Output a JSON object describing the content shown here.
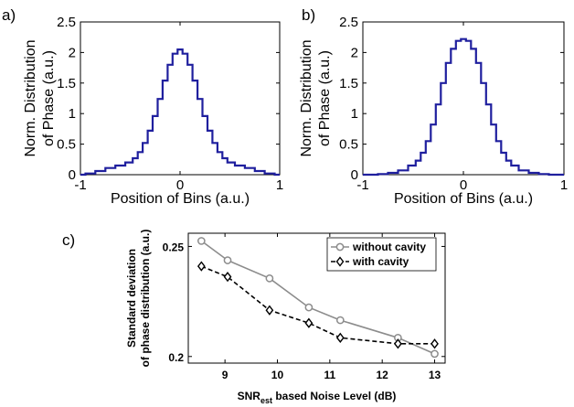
{
  "chart_data": [
    {
      "panel_label": "a)",
      "type": "line",
      "xlabel": "Position of Bins (a.u.)",
      "ylabel_lines": [
        "Norm. Distribution",
        "of Phase (a.u.)"
      ],
      "xlim": [
        -1,
        1
      ],
      "ylim": [
        0,
        2.5
      ],
      "xticks": [
        "-1",
        "0",
        "1"
      ],
      "yticks": [
        "0",
        "0.5",
        "1",
        "1.5",
        "2",
        "2.5"
      ],
      "line_color": "#1f1f9e",
      "series": [
        {
          "style": "step",
          "x": [
            -1,
            -0.9,
            -0.8,
            -0.7,
            -0.6,
            -0.5,
            -0.45,
            -0.4,
            -0.35,
            -0.3,
            -0.25,
            -0.2,
            -0.15,
            -0.1,
            -0.05,
            0,
            0.05,
            0.1,
            0.15,
            0.2,
            0.25,
            0.3,
            0.35,
            0.4,
            0.45,
            0.5,
            0.6,
            0.7,
            0.8,
            0.9,
            1
          ],
          "values": [
            0.0,
            0.02,
            0.06,
            0.11,
            0.15,
            0.2,
            0.27,
            0.37,
            0.52,
            0.72,
            0.96,
            1.24,
            1.54,
            1.8,
            1.98,
            2.05,
            1.98,
            1.8,
            1.54,
            1.24,
            0.96,
            0.72,
            0.52,
            0.37,
            0.27,
            0.2,
            0.15,
            0.11,
            0.06,
            0.02,
            0.0
          ]
        }
      ]
    },
    {
      "panel_label": "b)",
      "type": "line",
      "xlabel": "Position of Bins (a.u.)",
      "ylabel_lines": [
        "Norm. Distribution",
        "of Phase (a.u.)"
      ],
      "xlim": [
        -1,
        1
      ],
      "ylim": [
        0,
        2.5
      ],
      "xticks": [
        "-1",
        "0",
        "1"
      ],
      "yticks": [
        "0",
        "0.5",
        "1",
        "1.5",
        "2",
        "2.5"
      ],
      "line_color": "#1f1f9e",
      "series": [
        {
          "style": "step",
          "x": [
            -1,
            -0.9,
            -0.8,
            -0.7,
            -0.6,
            -0.5,
            -0.45,
            -0.4,
            -0.35,
            -0.3,
            -0.25,
            -0.2,
            -0.15,
            -0.1,
            -0.05,
            0,
            0.05,
            0.1,
            0.15,
            0.2,
            0.25,
            0.3,
            0.35,
            0.4,
            0.45,
            0.5,
            0.6,
            0.7,
            0.8,
            0.9,
            1
          ],
          "values": [
            0.0,
            0.0,
            0.01,
            0.03,
            0.07,
            0.15,
            0.23,
            0.36,
            0.55,
            0.82,
            1.15,
            1.5,
            1.83,
            2.06,
            2.19,
            2.22,
            2.19,
            2.06,
            1.83,
            1.5,
            1.15,
            0.82,
            0.55,
            0.36,
            0.23,
            0.15,
            0.07,
            0.03,
            0.01,
            0.0,
            0.0
          ]
        }
      ]
    },
    {
      "panel_label": "c)",
      "type": "line",
      "xlabel_main": "SNR",
      "xlabel_sub": "est",
      "xlabel_rest": " based Noise Level (dB)",
      "ylabel_lines": [
        "Standard deviation",
        "of phase distribution (a.u.)"
      ],
      "xlim": [
        8.3,
        13.2
      ],
      "ylim": [
        0.197,
        0.256
      ],
      "xticks": [
        "9",
        "10",
        "11",
        "12",
        "13"
      ],
      "yticks": [
        "0.2",
        "0.25"
      ],
      "legend_position": "top-right",
      "series": [
        {
          "name": "without cavity",
          "color": "#8c8c8c",
          "dash": "solid",
          "marker": "circle",
          "x": [
            8.55,
            9.05,
            9.85,
            10.6,
            11.2,
            12.3,
            13.0
          ],
          "values": [
            0.2525,
            0.2437,
            0.2355,
            0.2223,
            0.2165,
            0.2085,
            0.2012
          ]
        },
        {
          "name": "with cavity",
          "color": "#000000",
          "dash": "dashed",
          "marker": "diamond",
          "x": [
            8.55,
            9.05,
            9.85,
            10.6,
            11.2,
            12.3,
            13.0
          ],
          "values": [
            0.241,
            0.2362,
            0.221,
            0.2152,
            0.2085,
            0.2058,
            0.2058
          ]
        }
      ]
    }
  ]
}
